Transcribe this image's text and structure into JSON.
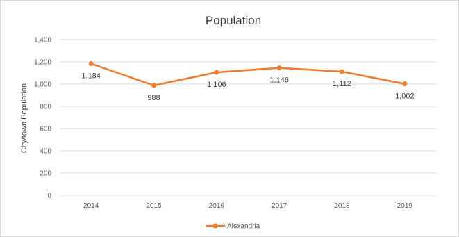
{
  "chart_data": {
    "type": "line",
    "title": "Population",
    "xlabel": "",
    "ylabel": "City/town Population",
    "categories": [
      "2014",
      "2015",
      "2016",
      "2017",
      "2018",
      "2019"
    ],
    "series": [
      {
        "name": "Alexandria",
        "values": [
          1184,
          988,
          1106,
          1146,
          1112,
          1002
        ],
        "labels": [
          "1,184",
          "988",
          "1,106",
          "1,146",
          "1,112",
          "1,002"
        ],
        "color": "#ed7d31"
      }
    ],
    "ylim": [
      0,
      1400
    ],
    "yticks": [
      0,
      200,
      400,
      600,
      800,
      1000,
      1200,
      1400
    ],
    "ytick_labels": [
      "0",
      "200",
      "400",
      "600",
      "800",
      "1,000",
      "1,200",
      "1,400"
    ],
    "grid": true,
    "gridline_color": "#d9d9d9",
    "legend": "bottom"
  }
}
